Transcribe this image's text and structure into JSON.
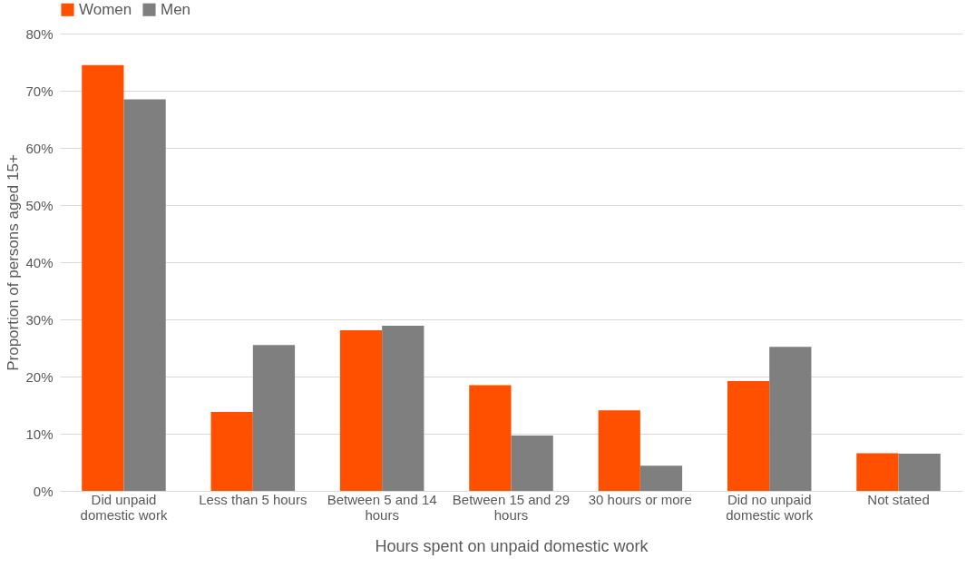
{
  "chart_data": {
    "type": "bar",
    "xlabel": "Hours spent on unpaid domestic work",
    "ylabel": "Proportion of persons aged 15+",
    "categories": [
      "Did unpaid domestic work",
      "Less than 5 hours",
      "Between 5 and 14 hours",
      "Between 15 and 29 hours",
      "30 hours or more",
      "Did no unpaid domestic work",
      "Not stated"
    ],
    "series": [
      {
        "name": "Women",
        "color": "#ff5000",
        "values": [
          0.745,
          0.138,
          0.281,
          0.185,
          0.141,
          0.192,
          0.066
        ]
      },
      {
        "name": "Men",
        "color": "#7f7f7f",
        "values": [
          0.685,
          0.255,
          0.289,
          0.097,
          0.044,
          0.252,
          0.065
        ]
      }
    ],
    "ylim": [
      0,
      0.8
    ],
    "yticks": [
      {
        "value": 0,
        "label": "0%"
      },
      {
        "value": 0.1,
        "label": "10%"
      },
      {
        "value": 0.2,
        "label": "20%"
      },
      {
        "value": 0.3,
        "label": "30%"
      },
      {
        "value": 0.4,
        "label": "40%"
      },
      {
        "value": 0.5,
        "label": "50%"
      },
      {
        "value": 0.6,
        "label": "60%"
      },
      {
        "value": 0.7,
        "label": "70%"
      },
      {
        "value": 0.8,
        "label": "80%"
      }
    ],
    "grid": "y",
    "legend": "top"
  }
}
